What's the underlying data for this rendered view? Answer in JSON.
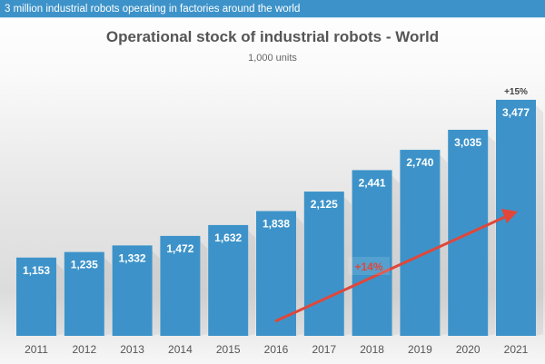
{
  "banner": "3 million industrial robots operating in factories around the world",
  "chart_data": {
    "type": "bar",
    "title": "Operational stock of industrial robots - World",
    "subtitle": "1,000 units",
    "categories": [
      "2011",
      "2012",
      "2013",
      "2014",
      "2015",
      "2016",
      "2017",
      "2018",
      "2019",
      "2020",
      "2021"
    ],
    "values": [
      1153,
      1235,
      1332,
      1472,
      1632,
      1838,
      2125,
      2441,
      2740,
      3035,
      3477
    ],
    "data_labels": [
      "1,153",
      "1,235",
      "1,332",
      "1,472",
      "1,632",
      "1,838",
      "2,125",
      "2,441",
      "2,740",
      "3,035",
      "3,477"
    ],
    "annotations": {
      "last_bar_growth": "+15%",
      "trend_growth": "+14%"
    },
    "colors": {
      "bar": "#3d93c9",
      "arrow": "#e0473a",
      "banner": "#3d93c9"
    },
    "grid": false,
    "legend": "none"
  }
}
